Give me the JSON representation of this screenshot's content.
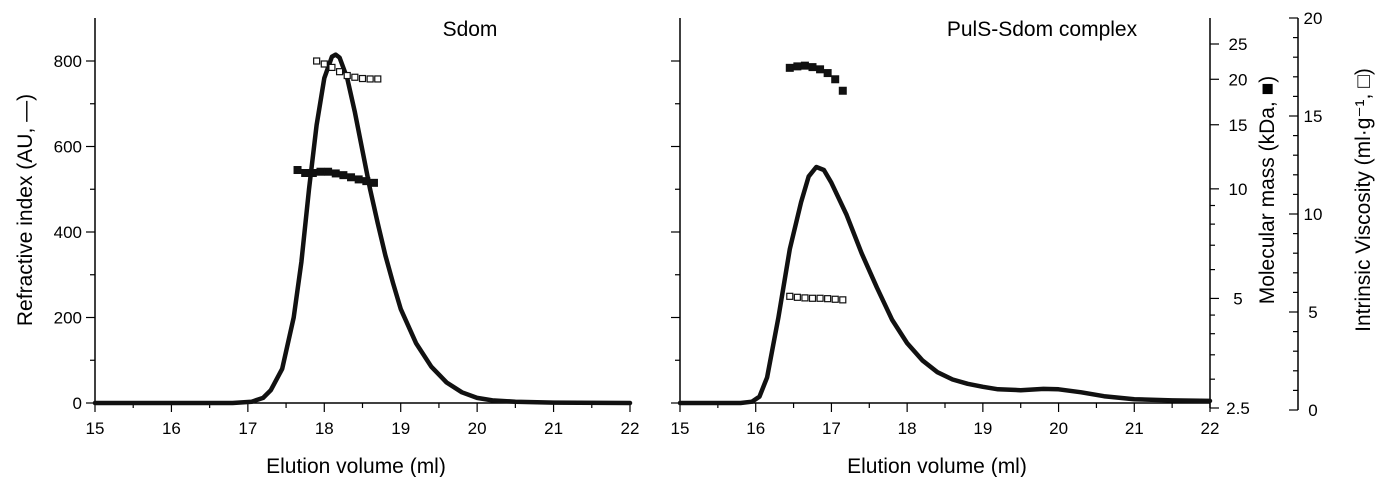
{
  "chart_data": [
    {
      "type": "line",
      "title": "Sdom",
      "xlabel": "Elution volume (ml)",
      "ylabel": "Refractive index (AU, —)",
      "xlim": [
        15,
        22
      ],
      "ylim": [
        0,
        880
      ],
      "x_ticks": [
        "15",
        "16",
        "17",
        "18",
        "19",
        "20",
        "21",
        "22"
      ],
      "y_ticks": [
        "0",
        "200",
        "400",
        "600",
        "800"
      ],
      "series": [
        {
          "values": [
            [
              15,
              0
            ],
            [
              16,
              0
            ],
            [
              16.8,
              0
            ],
            [
              17.05,
              3
            ],
            [
              17.2,
              12
            ],
            [
              17.3,
              30
            ],
            [
              17.45,
              80
            ],
            [
              17.6,
              200
            ],
            [
              17.7,
              330
            ],
            [
              17.8,
              500
            ],
            [
              17.9,
              650
            ],
            [
              18.0,
              760
            ],
            [
              18.1,
              810
            ],
            [
              18.15,
              815
            ],
            [
              18.2,
              808
            ],
            [
              18.3,
              760
            ],
            [
              18.4,
              680
            ],
            [
              18.5,
              590
            ],
            [
              18.6,
              500
            ],
            [
              18.7,
              420
            ],
            [
              18.8,
              345
            ],
            [
              18.9,
              280
            ],
            [
              19.0,
              220
            ],
            [
              19.2,
              140
            ],
            [
              19.4,
              85
            ],
            [
              19.6,
              48
            ],
            [
              19.8,
              25
            ],
            [
              20.0,
              12
            ],
            [
              20.2,
              6
            ],
            [
              20.5,
              3
            ],
            [
              21,
              1
            ],
            [
              22,
              0
            ]
          ]
        },
        {
          "values": [
            [
              17.65,
              545
            ],
            [
              17.75,
              538
            ],
            [
              17.85,
              538
            ],
            [
              17.95,
              541
            ],
            [
              18.05,
              541
            ],
            [
              18.15,
              537
            ],
            [
              18.25,
              533
            ],
            [
              18.35,
              528
            ],
            [
              18.45,
              523
            ],
            [
              18.55,
              519
            ],
            [
              18.65,
              515
            ]
          ]
        },
        {
          "values": [
            [
              17.9,
              800
            ],
            [
              18.0,
              793
            ],
            [
              18.1,
              785
            ],
            [
              18.2,
              775
            ],
            [
              18.3,
              766
            ],
            [
              18.4,
              762
            ],
            [
              18.5,
              759
            ],
            [
              18.6,
              758
            ],
            [
              18.7,
              758
            ]
          ]
        }
      ]
    },
    {
      "type": "line",
      "title": "PulS-Sdom complex",
      "xlabel": "Elution volume (ml)",
      "y2label": "Molecular mass (kDa, ■)",
      "y3label": "Intrinsic Viscosity (ml·g⁻¹, □)",
      "xlim": [
        15,
        22
      ],
      "y2_scale": "log",
      "y2lim": [
        2.5,
        25
      ],
      "y2_ticks": [
        "2.5",
        "5",
        "10",
        "15",
        "20",
        "25"
      ],
      "y3lim": [
        0,
        20
      ],
      "y3_ticks": [
        "0",
        "5",
        "10",
        "15",
        "20"
      ],
      "x_ticks": [
        "15",
        "16",
        "17",
        "18",
        "19",
        "20",
        "21",
        "22"
      ],
      "series": [
        {
          "values": [
            [
              15,
              0
            ],
            [
              15.8,
              0
            ],
            [
              15.95,
              3
            ],
            [
              16.05,
              15
            ],
            [
              16.15,
              60
            ],
            [
              16.3,
              200
            ],
            [
              16.45,
              360
            ],
            [
              16.6,
              470
            ],
            [
              16.7,
              530
            ],
            [
              16.8,
              552
            ],
            [
              16.9,
              545
            ],
            [
              17.0,
              515
            ],
            [
              17.2,
              440
            ],
            [
              17.4,
              350
            ],
            [
              17.6,
              270
            ],
            [
              17.8,
              195
            ],
            [
              18.0,
              140
            ],
            [
              18.2,
              100
            ],
            [
              18.4,
              72
            ],
            [
              18.6,
              55
            ],
            [
              18.8,
              45
            ],
            [
              19.0,
              38
            ],
            [
              19.2,
              32
            ],
            [
              19.5,
              30
            ],
            [
              19.8,
              33
            ],
            [
              20.0,
              32
            ],
            [
              20.3,
              25
            ],
            [
              20.6,
              16
            ],
            [
              21.0,
              9
            ],
            [
              21.5,
              6
            ],
            [
              22,
              5
            ]
          ]
        },
        {
          "values": [
            [
              16.45,
              21.5
            ],
            [
              16.55,
              21.7
            ],
            [
              16.65,
              21.8
            ],
            [
              16.75,
              21.6
            ],
            [
              16.85,
              21.3
            ],
            [
              16.95,
              20.8
            ],
            [
              17.05,
              20.0
            ],
            [
              17.15,
              18.6
            ]
          ]
        },
        {
          "values": [
            [
              16.45,
              5.8
            ],
            [
              16.55,
              5.75
            ],
            [
              16.65,
              5.72
            ],
            [
              16.75,
              5.7
            ],
            [
              16.85,
              5.7
            ],
            [
              16.95,
              5.68
            ],
            [
              17.05,
              5.65
            ],
            [
              17.15,
              5.62
            ]
          ]
        }
      ]
    }
  ]
}
